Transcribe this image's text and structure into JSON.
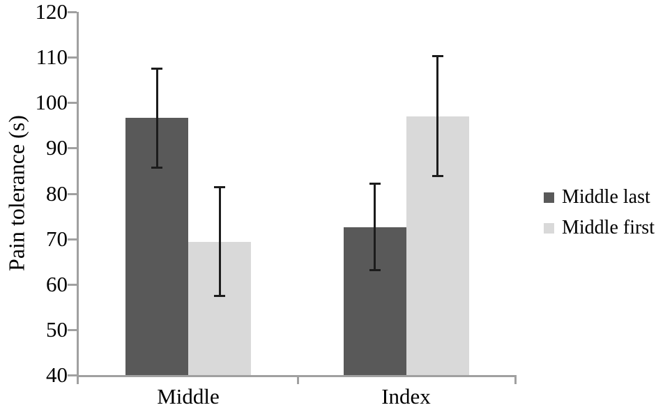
{
  "chart_data": {
    "type": "bar",
    "title": "",
    "categories": [
      "Middle",
      "Index"
    ],
    "series": [
      {
        "name": "Middle last",
        "color": "#595959",
        "values": [
          96.6,
          72.6
        ],
        "errors": [
          11.0,
          9.6
        ]
      },
      {
        "name": "Middle first",
        "color": "#d9d9d9",
        "values": [
          69.4,
          97.0
        ],
        "errors": [
          12.0,
          13.3
        ]
      }
    ],
    "xlabel": "",
    "ylabel": "Pain tolerance (s)",
    "ylim": [
      40,
      120
    ],
    "ytick_step": 10,
    "yticks": [
      40,
      50,
      60,
      70,
      80,
      90,
      100,
      110,
      120
    ],
    "grid": false,
    "legend_position": "right",
    "legend_items": [
      "Middle last",
      "Middle first"
    ],
    "colors": {
      "error_bar": "#1c1c1c",
      "axis": "#a0a0a0",
      "text": "#000000",
      "background": "#ffffff"
    }
  }
}
